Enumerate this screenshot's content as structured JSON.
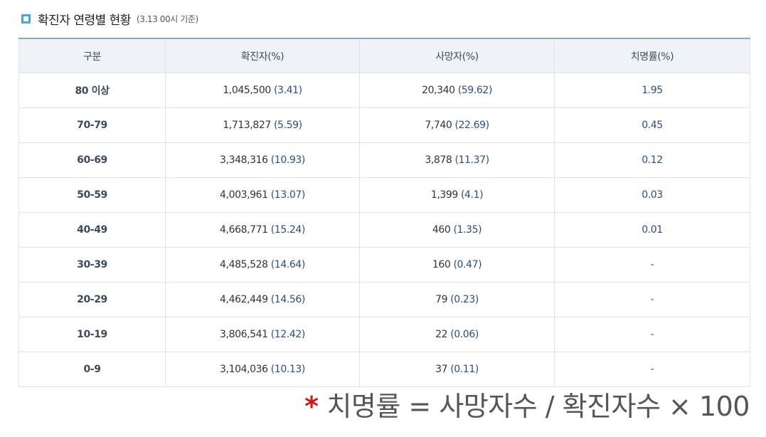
{
  "title": {
    "main": "확진자 연령별 현황",
    "sub": "(3.13 00시 기준)",
    "icon": "square-bullet-icon",
    "icon_color": "#4aa6d4"
  },
  "table": {
    "headers": [
      "구분",
      "확진자(%)",
      "사망자(%)",
      "치명률(%)"
    ],
    "rows": [
      {
        "group": "80 이상",
        "confirmed": "1,045,500",
        "confirmed_pct": "(3.41)",
        "deaths": "20,340",
        "deaths_pct": "(59.62)",
        "fatality": "1.95"
      },
      {
        "group": "70-79",
        "confirmed": "1,713,827",
        "confirmed_pct": "(5.59)",
        "deaths": "7,740",
        "deaths_pct": "(22.69)",
        "fatality": "0.45"
      },
      {
        "group": "60-69",
        "confirmed": "3,348,316",
        "confirmed_pct": "(10.93)",
        "deaths": "3,878",
        "deaths_pct": "(11.37)",
        "fatality": "0.12"
      },
      {
        "group": "50-59",
        "confirmed": "4,003,961",
        "confirmed_pct": "(13.07)",
        "deaths": "1,399",
        "deaths_pct": "(4.1)",
        "fatality": "0.03"
      },
      {
        "group": "40-49",
        "confirmed": "4,668,771",
        "confirmed_pct": "(15.24)",
        "deaths": "460",
        "deaths_pct": "(1.35)",
        "fatality": "0.01"
      },
      {
        "group": "30-39",
        "confirmed": "4,485,528",
        "confirmed_pct": "(14.64)",
        "deaths": "160",
        "deaths_pct": "(0.47)",
        "fatality": "-"
      },
      {
        "group": "20-29",
        "confirmed": "4,462,449",
        "confirmed_pct": "(14.56)",
        "deaths": "79",
        "deaths_pct": "(0.23)",
        "fatality": "-"
      },
      {
        "group": "10-19",
        "confirmed": "3,806,541",
        "confirmed_pct": "(12.42)",
        "deaths": "22",
        "deaths_pct": "(0.06)",
        "fatality": "-"
      },
      {
        "group": "0-9",
        "confirmed": "3,104,036",
        "confirmed_pct": "(10.13)",
        "deaths": "37",
        "deaths_pct": "(0.11)",
        "fatality": "-"
      }
    ]
  },
  "footnote": {
    "star": "*",
    "text": "치명률 = 사망자수 / 확진자수 × 100",
    "star_color": "#d01818"
  },
  "colors": {
    "header_bg": "#eef3f8",
    "pct_text": "#2a4f88",
    "border": "#dfe4ea"
  }
}
